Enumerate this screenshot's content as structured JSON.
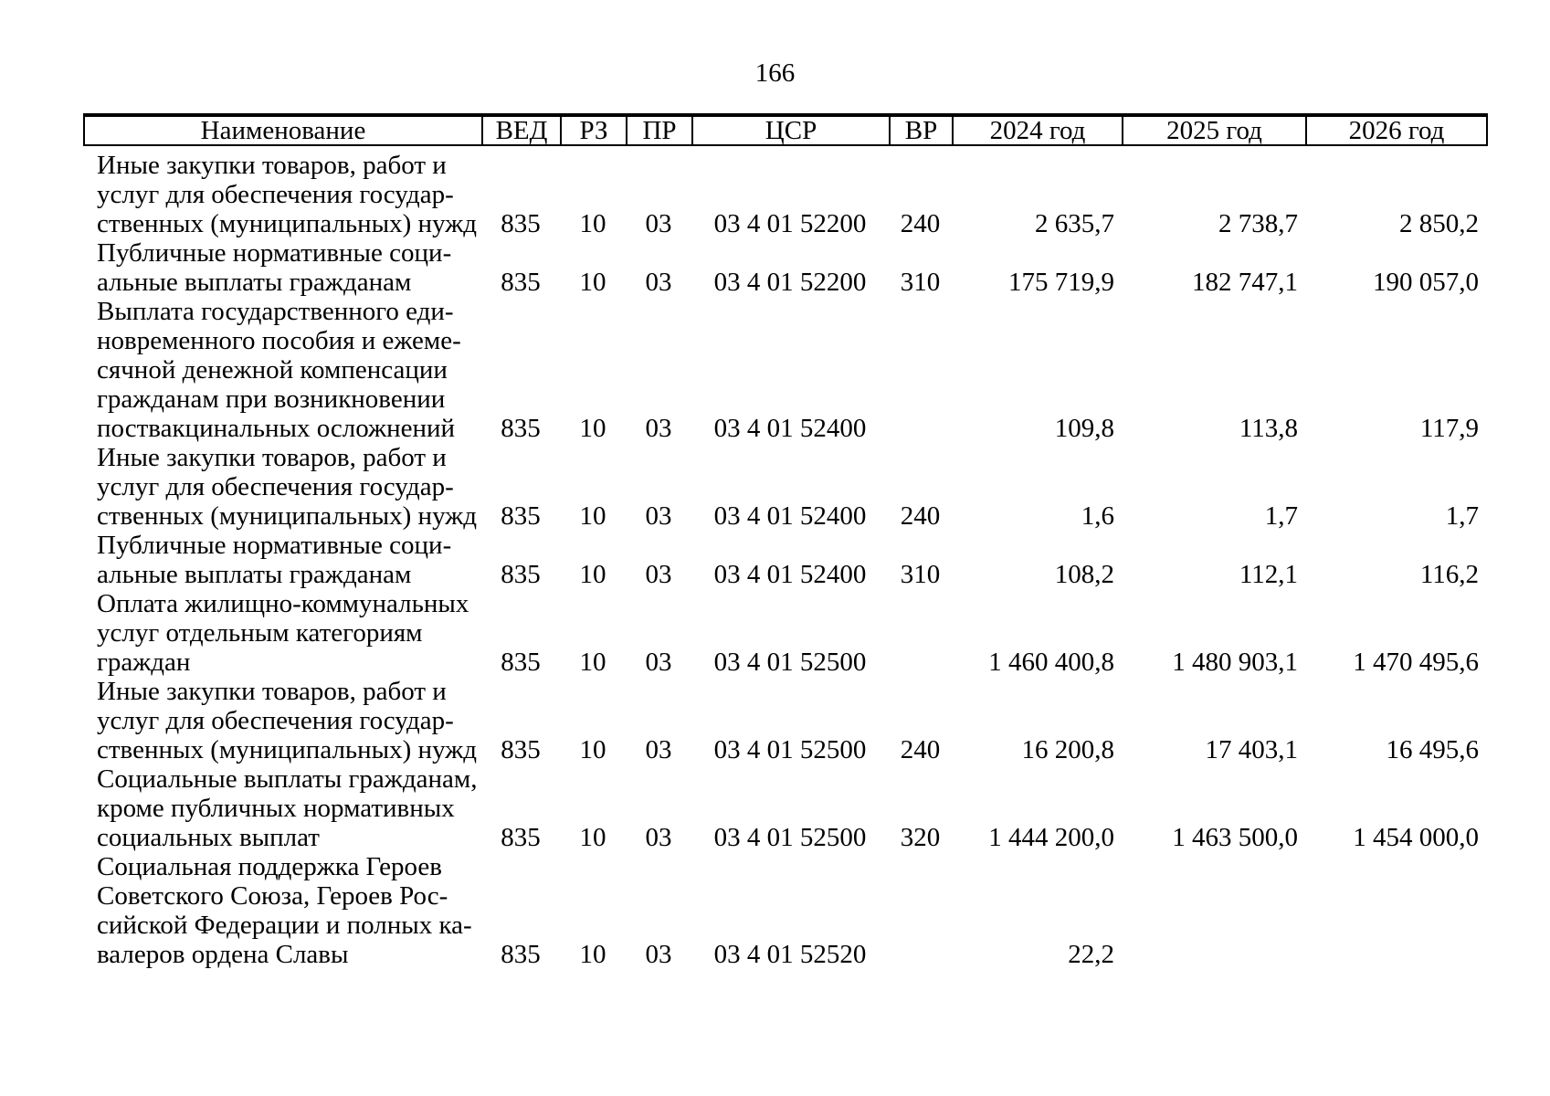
{
  "page": {
    "number": "166"
  },
  "table": {
    "headers": [
      {
        "label": "Наименование"
      },
      {
        "label": "ВЕД"
      },
      {
        "label": "РЗ"
      },
      {
        "label": "ПР"
      },
      {
        "label": "ЦСР"
      },
      {
        "label": "ВР"
      },
      {
        "label": "2024 год"
      },
      {
        "label": "2025 год"
      },
      {
        "label": "2026 год"
      }
    ],
    "rows": [
      {
        "name_lines": [
          "Иные закупки товаров, работ и",
          "услуг для обеспечения государ-",
          "ственных (муниципальных) нужд"
        ],
        "ved": "835",
        "rz": "10",
        "pr": "03",
        "csr": "03 4 01 52200",
        "vr": "240",
        "y2024": "2 635,7",
        "y2025": "2 738,7",
        "y2026": "2 850,2"
      },
      {
        "name_lines": [
          "Публичные нормативные соци-",
          "альные выплаты гражданам"
        ],
        "ved": "835",
        "rz": "10",
        "pr": "03",
        "csr": "03 4 01 52200",
        "vr": "310",
        "y2024": "175 719,9",
        "y2025": "182 747,1",
        "y2026": "190 057,0"
      },
      {
        "name_lines": [
          "Выплата государственного еди-",
          "новременного пособия и ежеме-",
          "сячной денежной компенсации",
          "гражданам при возникновении",
          "поствакцинальных осложнений"
        ],
        "ved": "835",
        "rz": "10",
        "pr": "03",
        "csr": "03 4 01 52400",
        "vr": "",
        "y2024": "109,8",
        "y2025": "113,8",
        "y2026": "117,9"
      },
      {
        "name_lines": [
          "Иные закупки товаров, работ и",
          "услуг для обеспечения государ-",
          "ственных (муниципальных) нужд"
        ],
        "ved": "835",
        "rz": "10",
        "pr": "03",
        "csr": "03 4 01 52400",
        "vr": "240",
        "y2024": "1,6",
        "y2025": "1,7",
        "y2026": "1,7"
      },
      {
        "name_lines": [
          "Публичные нормативные соци-",
          "альные выплаты гражданам"
        ],
        "ved": "835",
        "rz": "10",
        "pr": "03",
        "csr": "03 4 01 52400",
        "vr": "310",
        "y2024": "108,2",
        "y2025": "112,1",
        "y2026": "116,2"
      },
      {
        "name_lines": [
          "Оплата жилищно-коммунальных",
          "услуг отдельным категориям",
          "граждан"
        ],
        "ved": "835",
        "rz": "10",
        "pr": "03",
        "csr": "03 4 01 52500",
        "vr": "",
        "y2024": "1 460 400,8",
        "y2025": "1 480 903,1",
        "y2026": "1 470 495,6"
      },
      {
        "name_lines": [
          "Иные закупки товаров, работ и",
          "услуг для обеспечения государ-",
          "ственных (муниципальных) нужд"
        ],
        "ved": "835",
        "rz": "10",
        "pr": "03",
        "csr": "03 4 01 52500",
        "vr": "240",
        "y2024": "16 200,8",
        "y2025": "17 403,1",
        "y2026": "16 495,6"
      },
      {
        "name_lines": [
          "Социальные выплаты гражданам,",
          "кроме публичных нормативных",
          "социальных выплат"
        ],
        "ved": "835",
        "rz": "10",
        "pr": "03",
        "csr": "03 4 01 52500",
        "vr": "320",
        "y2024": "1 444 200,0",
        "y2025": "1 463 500,0",
        "y2026": "1 454 000,0"
      },
      {
        "name_lines": [
          "Социальная поддержка Героев",
          "Советского Союза, Героев Рос-",
          "сийской Федерации и полных ка-",
          "валеров ордена Славы"
        ],
        "ved": "835",
        "rz": "10",
        "pr": "03",
        "csr": "03 4 01 52520",
        "vr": "",
        "y2024": "22,2",
        "y2025": "",
        "y2026": ""
      }
    ]
  }
}
